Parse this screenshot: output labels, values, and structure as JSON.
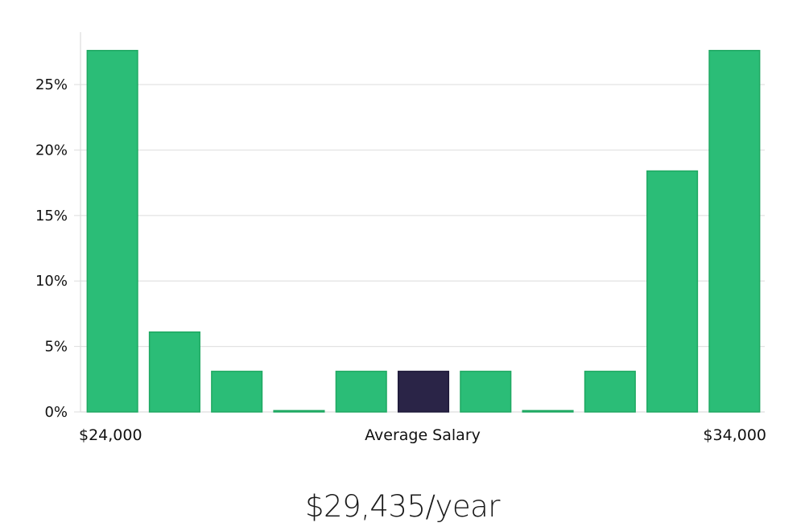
{
  "chart_data": {
    "type": "bar",
    "title": "",
    "xlabel": "Average Salary",
    "ylabel": "",
    "x_range_labels": {
      "min": "$24,000",
      "max": "$34,000"
    },
    "categories": [
      "1",
      "2",
      "3",
      "4",
      "5",
      "6",
      "7",
      "8",
      "9",
      "10",
      "11"
    ],
    "values": [
      27.6,
      6.1,
      3.1,
      0.1,
      3.1,
      3.1,
      3.1,
      0.1,
      3.1,
      18.4,
      27.6
    ],
    "highlight_index": 5,
    "ylim": [
      0,
      29
    ],
    "yticks": [
      0,
      5,
      10,
      15,
      20,
      25
    ],
    "ytick_labels": [
      "0%",
      "5%",
      "10%",
      "15%",
      "20%",
      "25%"
    ],
    "grid": true,
    "colors": {
      "bar": "#2bbd77",
      "bar_stroke": "#1fa862",
      "highlight": "#2a2447",
      "grid": "#e3e3e3",
      "axis": "#dddddd"
    }
  },
  "summary": {
    "salary_text": "$29,435/year"
  }
}
